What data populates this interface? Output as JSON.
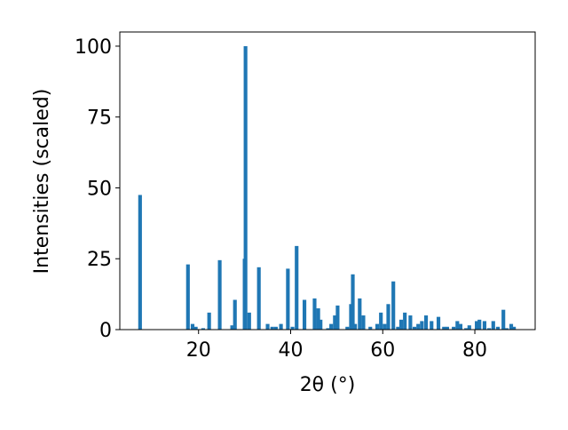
{
  "chart_data": {
    "type": "bar",
    "xlabel": "2θ (°)",
    "ylabel": "Intensities (scaled)",
    "color": "#1f77b4",
    "x": [
      7.3,
      17.7,
      18.7,
      19.4,
      21,
      22.3,
      24.6,
      27.3,
      27.9,
      30.0,
      30.2,
      31,
      33.1,
      35,
      36,
      36.8,
      37.9,
      39.4,
      40.4,
      41.3,
      43,
      45.2,
      46,
      46.5,
      48.1,
      48.8,
      49.6,
      50.2,
      52.3,
      53.1,
      53.5,
      54,
      55,
      55.8,
      57.3,
      58.8,
      59.6,
      60.4,
      61.2,
      62.3,
      63.3,
      64,
      64.8,
      66,
      66.9,
      67.7,
      68.5,
      69.4,
      70.6,
      72.1,
      73.3,
      74,
      75.4,
      76.2,
      76.9,
      78.1,
      78.8,
      80.4,
      81,
      82.1,
      83.1,
      84,
      85,
      86.2,
      86.9,
      87.9,
      88.5
    ],
    "values": [
      47.5,
      23,
      2,
      1,
      0.5,
      6,
      24.5,
      1.5,
      10.5,
      25,
      100,
      6,
      22,
      2,
      1,
      1,
      2,
      21.5,
      1,
      29.5,
      10.5,
      11,
      7.5,
      3.5,
      0.5,
      2,
      5,
      8.5,
      1,
      9,
      19.5,
      2,
      11,
      5,
      1,
      2,
      6,
      2,
      9,
      17,
      1,
      3.5,
      6,
      5,
      1,
      2,
      3,
      5,
      3,
      4.5,
      1,
      1,
      1,
      3,
      2,
      0.5,
      1.5,
      3,
      3.5,
      3,
      0.5,
      3,
      1,
      7,
      0.5,
      2,
      1
    ],
    "bar_width": 0.8,
    "xlim": [
      2.9,
      93.1
    ],
    "ylim": [
      0,
      105
    ],
    "xticks": [
      20,
      40,
      60,
      80
    ],
    "yticks": [
      0,
      25,
      50,
      75,
      100
    ]
  }
}
